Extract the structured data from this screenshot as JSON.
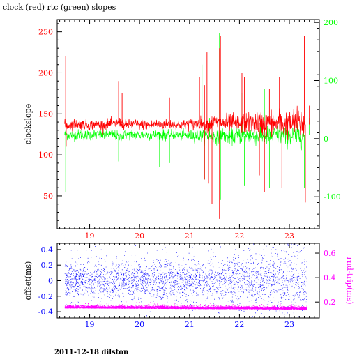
{
  "title": "clock (red) rtc (green) slopes",
  "footer": "2011-12-18 dilston",
  "colors": {
    "clock": "#ff0000",
    "rtc": "#00ff00",
    "offset": "#0000ff",
    "rndtrip": "#ff00ff",
    "axis": "#000000"
  },
  "chart_data": [
    {
      "type": "line",
      "title": "clock (red) rtc (green) slopes",
      "xlabel": "",
      "ylabel": "clockslope",
      "y2label": "",
      "xlim": [
        18.35,
        23.6
      ],
      "ylim": [
        10,
        265
      ],
      "y2lim": [
        -155,
        205
      ],
      "x_ticks": [
        "19",
        "20",
        "21",
        "22",
        "23"
      ],
      "x_tick_values": [
        19,
        20,
        21,
        22,
        23
      ],
      "y_ticks": [
        "50",
        "100",
        "150",
        "200",
        "250"
      ],
      "y_tick_values": [
        50,
        100,
        150,
        200,
        250
      ],
      "y2_ticks": [
        "-100",
        "0",
        "100",
        "200"
      ],
      "y2_tick_values": [
        -100,
        0,
        100,
        200
      ],
      "series": [
        {
          "name": "clock",
          "axis": "left",
          "color": "#ff0000",
          "x": [
            18.5,
            18.6,
            18.7,
            18.8,
            18.9,
            19.0,
            19.1,
            19.2,
            19.3,
            19.4,
            19.5,
            19.6,
            19.7,
            19.8,
            19.9,
            20.0,
            20.1,
            20.2,
            20.3,
            20.4,
            20.5,
            20.6,
            20.7,
            20.8,
            20.9,
            21.0,
            21.1,
            21.2,
            21.3,
            21.4,
            21.5,
            21.6,
            21.7,
            21.8,
            21.9,
            22.0,
            22.1,
            22.2,
            22.3,
            22.4,
            22.5,
            22.6,
            22.7,
            22.8,
            22.9,
            23.0,
            23.1,
            23.2,
            23.3
          ],
          "y": [
            137,
            136,
            138,
            137,
            137,
            136,
            138,
            137,
            137,
            138,
            137,
            140,
            136,
            137,
            138,
            137,
            137,
            136,
            138,
            137,
            137,
            138,
            137,
            136,
            137,
            138,
            137,
            139,
            138,
            137,
            140,
            139,
            138,
            140,
            138,
            137,
            139,
            138,
            140,
            139,
            137,
            140,
            138,
            139,
            138,
            137,
            140,
            138,
            137
          ]
        },
        {
          "name": "rtc",
          "axis": "left",
          "color": "#00ff00",
          "x": [
            18.5,
            18.6,
            18.7,
            18.8,
            18.9,
            19.0,
            19.1,
            19.2,
            19.3,
            19.4,
            19.5,
            19.6,
            19.7,
            19.8,
            19.9,
            20.0,
            20.1,
            20.2,
            20.3,
            20.4,
            20.5,
            20.6,
            20.7,
            20.8,
            20.9,
            21.0,
            21.1,
            21.2,
            21.3,
            21.4,
            21.5,
            21.6,
            21.7,
            21.8,
            21.9,
            22.0,
            22.1,
            22.2,
            22.3,
            22.4,
            22.5,
            22.6,
            22.7,
            22.8,
            22.9,
            23.0,
            23.1,
            23.2,
            23.3
          ],
          "y": [
            125,
            124,
            124,
            125,
            124,
            124,
            125,
            124,
            124,
            125,
            124,
            122,
            124,
            125,
            124,
            124,
            125,
            124,
            124,
            125,
            124,
            124,
            125,
            124,
            124,
            123,
            124,
            123,
            124,
            123,
            122,
            123,
            124,
            122,
            123,
            124,
            123,
            124,
            122,
            123,
            124,
            122,
            123,
            124,
            123,
            124,
            122,
            123,
            124
          ]
        }
      ],
      "spikes_clock": [
        [
          18.52,
          220
        ],
        [
          18.53,
          110
        ],
        [
          19.58,
          190
        ],
        [
          19.65,
          175
        ],
        [
          20.55,
          165
        ],
        [
          20.6,
          170
        ],
        [
          21.2,
          195
        ],
        [
          21.3,
          185
        ],
        [
          21.35,
          225
        ],
        [
          21.6,
          230
        ],
        [
          21.62,
          245
        ],
        [
          21.45,
          40
        ],
        [
          21.6,
          22
        ],
        [
          21.3,
          70
        ],
        [
          21.38,
          65
        ],
        [
          22.05,
          200
        ],
        [
          22.1,
          195
        ],
        [
          22.35,
          210
        ],
        [
          22.6,
          180
        ],
        [
          22.8,
          195
        ],
        [
          23.3,
          245
        ],
        [
          23.32,
          42
        ],
        [
          22.85,
          60
        ],
        [
          22.5,
          55
        ],
        [
          22.4,
          75
        ],
        [
          23.4,
          160
        ]
      ],
      "spikes_rtc": [
        [
          18.52,
          55
        ],
        [
          19.58,
          92
        ],
        [
          21.25,
          210
        ],
        [
          21.6,
          248
        ],
        [
          21.62,
          45
        ],
        [
          21.3,
          70
        ],
        [
          21.4,
          145
        ],
        [
          22.05,
          175
        ],
        [
          22.1,
          62
        ],
        [
          22.35,
          175
        ],
        [
          22.6,
          60
        ],
        [
          22.5,
          180
        ],
        [
          23.3,
          60
        ],
        [
          23.4,
          145
        ],
        [
          20.4,
          85
        ],
        [
          20.6,
          90
        ]
      ]
    },
    {
      "type": "scatter",
      "xlabel": "",
      "ylabel": "offset(ms)",
      "y2label": "rnd-trip(ms)",
      "xlim": [
        18.35,
        23.6
      ],
      "ylim": [
        -0.48,
        0.48
      ],
      "y2lim": [
        0.07,
        0.68
      ],
      "x_ticks": [
        "19",
        "20",
        "21",
        "22",
        "23"
      ],
      "x_tick_values": [
        19,
        20,
        21,
        22,
        23
      ],
      "y_ticks": [
        "-0.4",
        "-0.2",
        "0",
        "0.2",
        "0.4"
      ],
      "y_tick_values": [
        -0.4,
        -0.2,
        0,
        0.2,
        0.4
      ],
      "y2_ticks": [
        "0.2",
        "0.4",
        "0.6"
      ],
      "y2_tick_values": [
        0.2,
        0.4,
        0.6
      ],
      "series": [
        {
          "name": "offset",
          "axis": "left",
          "color": "#0000ff",
          "x_range": [
            18.5,
            23.35
          ],
          "center": 0.0,
          "spread": 0.12,
          "extreme": 0.45
        },
        {
          "name": "rnd-trip",
          "axis": "right",
          "color": "#ff00ff",
          "x_range": [
            18.5,
            23.35
          ],
          "center_start": 0.15,
          "center_end": 0.14,
          "spread": 0.01
        }
      ]
    }
  ]
}
